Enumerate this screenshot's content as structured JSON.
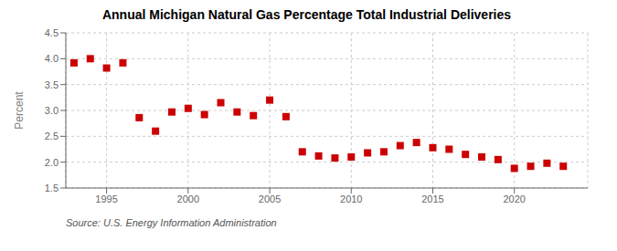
{
  "chart_data": {
    "type": "scatter",
    "title": "Annual Michigan Natural Gas Percentage Total Industrial Deliveries",
    "ylabel": "Percent",
    "source": "Source: U.S. Energy Information Administration",
    "x": [
      1993,
      1994,
      1995,
      1996,
      1997,
      1998,
      1999,
      2000,
      2001,
      2002,
      2003,
      2004,
      2005,
      2006,
      2007,
      2008,
      2009,
      2010,
      2011,
      2012,
      2013,
      2014,
      2015,
      2016,
      2017,
      2018,
      2019,
      2020,
      2021,
      2022,
      2023
    ],
    "values": [
      3.92,
      4.0,
      3.82,
      3.92,
      2.86,
      2.6,
      2.97,
      3.04,
      2.92,
      3.15,
      2.97,
      2.9,
      3.2,
      2.88,
      2.2,
      2.12,
      2.08,
      2.1,
      2.18,
      2.2,
      2.32,
      2.38,
      2.28,
      2.25,
      2.15,
      2.1,
      2.05,
      1.88,
      1.92,
      1.98,
      1.92
    ],
    "color": "#cc0000",
    "marker": "square",
    "xlim": [
      1992.5,
      2024.5
    ],
    "ylim": [
      1.5,
      4.5
    ],
    "xticks": [
      1995,
      2000,
      2005,
      2010,
      2015,
      2020
    ],
    "yticks": [
      1.5,
      {
        "value": 2.0,
        "label": "2.0"
      },
      2.5,
      {
        "value": 3.0,
        "label": "3.0"
      },
      3.5,
      {
        "value": 4.0,
        "label": "4.0"
      },
      4.5
    ],
    "grid": true
  }
}
